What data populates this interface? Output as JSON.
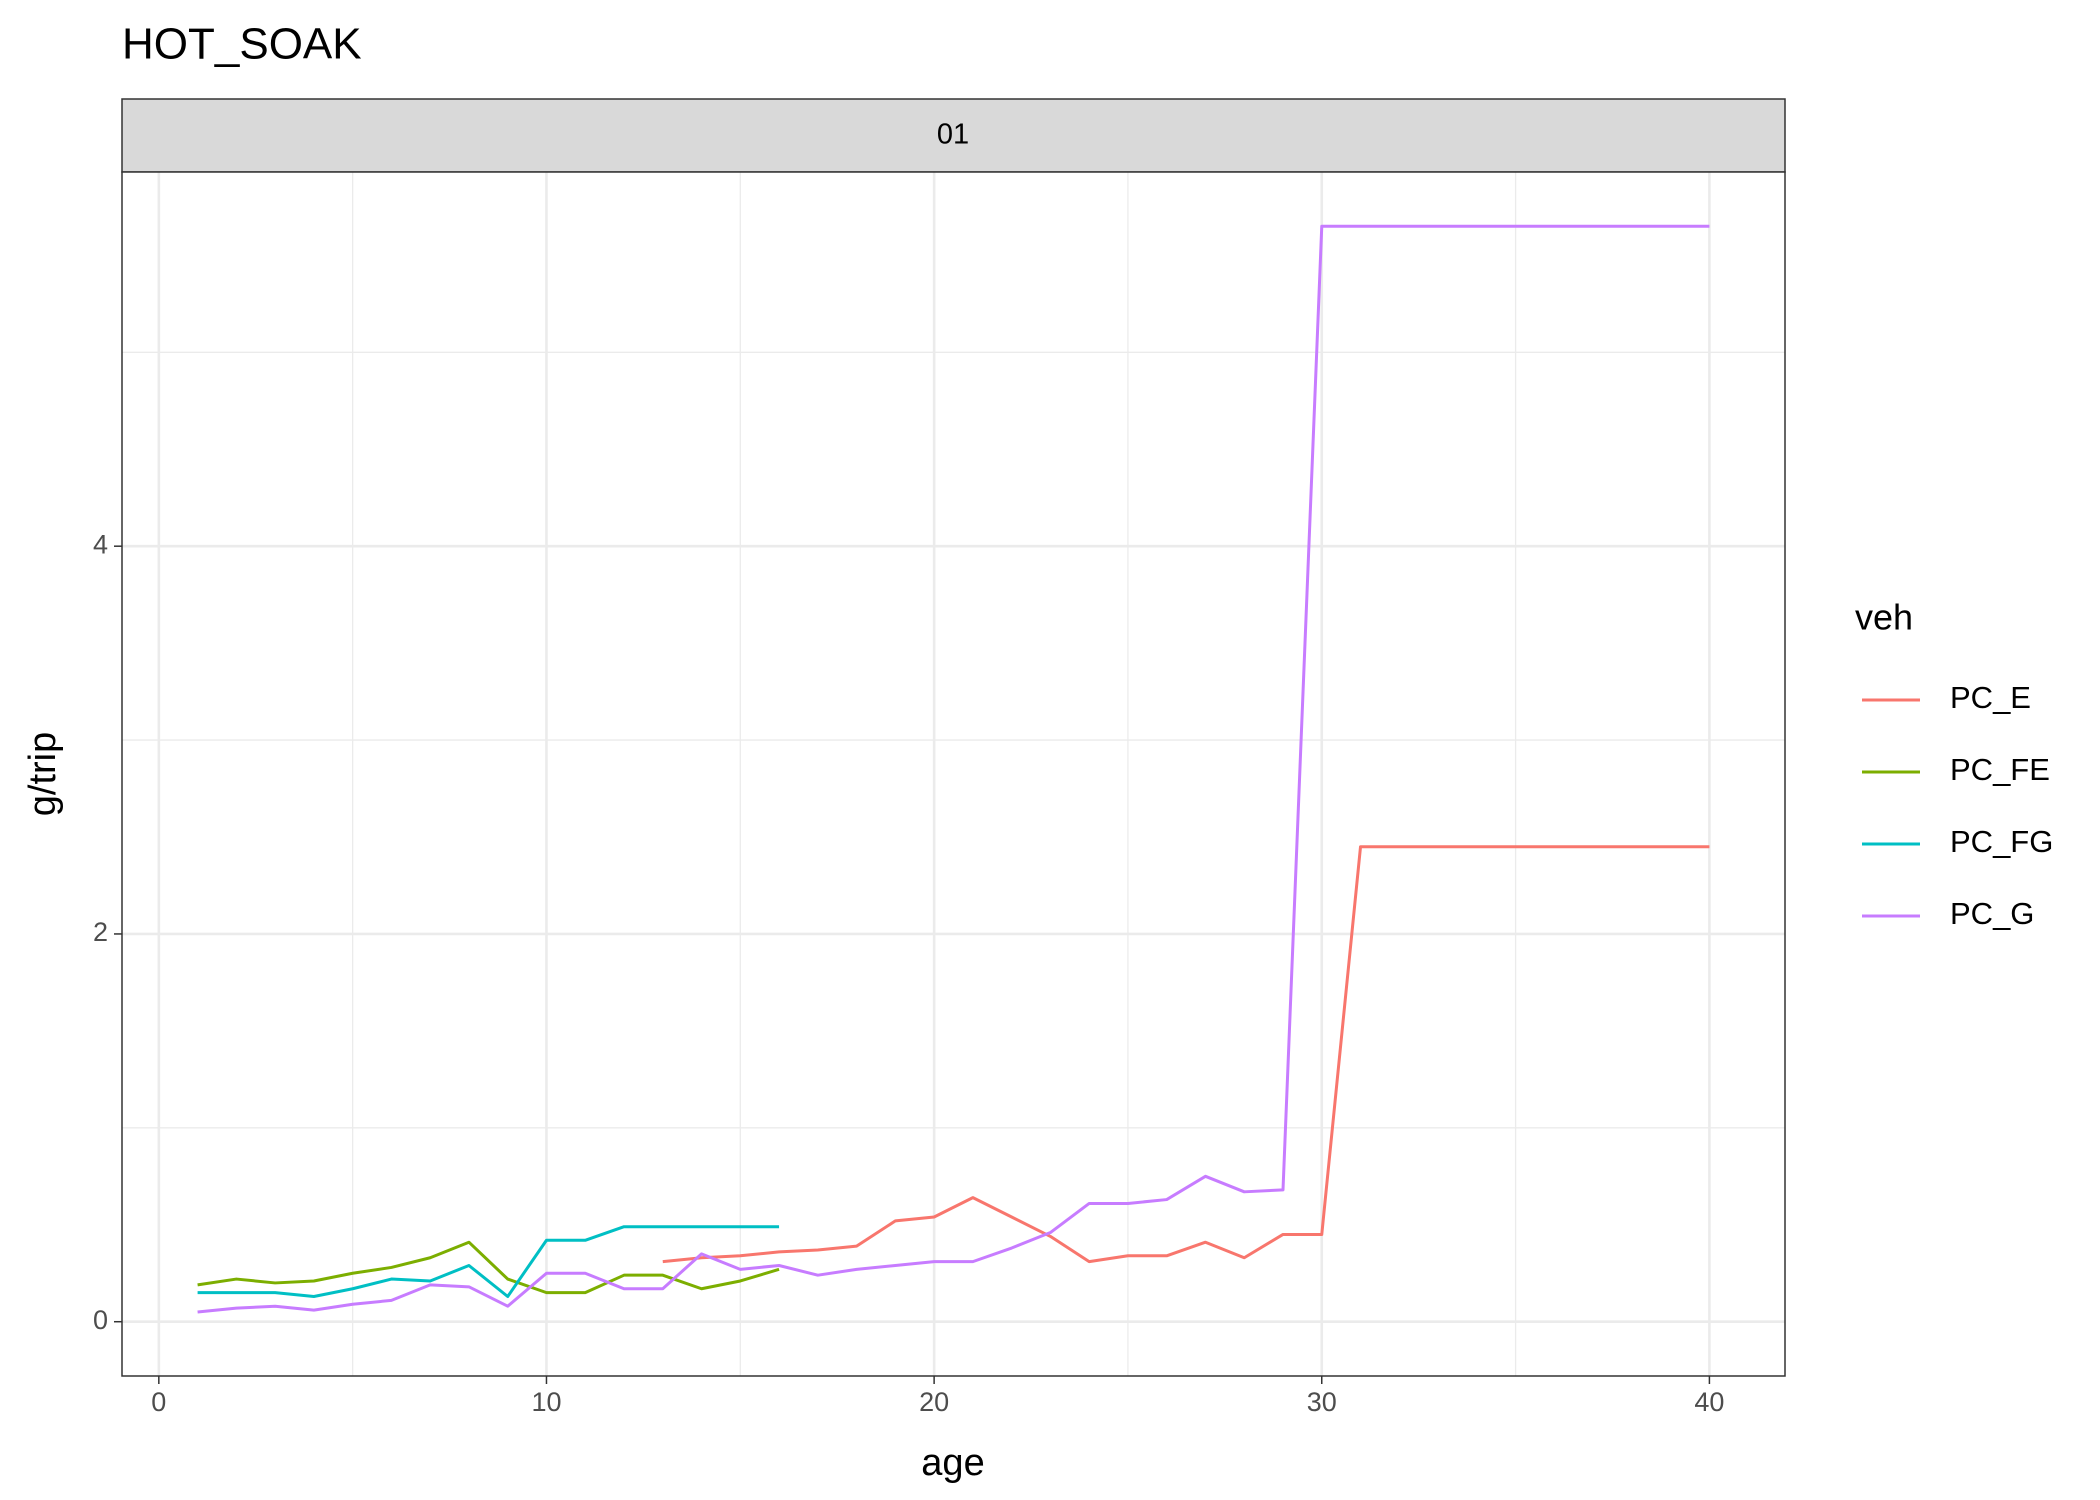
{
  "chart_data": {
    "type": "line",
    "title": "HOT_SOAK",
    "facet_label": "01",
    "x_label": "age",
    "y_label": "g/trip",
    "legend_title": "veh",
    "legend_position": "right",
    "grid": true,
    "x": [
      1,
      2,
      3,
      4,
      5,
      6,
      7,
      8,
      9,
      10,
      11,
      12,
      13,
      14,
      15,
      16,
      17,
      18,
      19,
      20,
      21,
      22,
      23,
      24,
      25,
      26,
      27,
      28,
      29,
      30,
      31,
      32,
      33,
      34,
      35,
      36,
      37,
      38,
      39,
      40
    ],
    "series": [
      {
        "name": "PC_E",
        "color": "#F8766D",
        "values": [
          null,
          null,
          null,
          null,
          null,
          null,
          null,
          null,
          null,
          null,
          null,
          null,
          0.31,
          0.33,
          0.34,
          0.36,
          0.37,
          0.39,
          0.52,
          0.54,
          0.64,
          0.54,
          0.44,
          0.31,
          0.34,
          0.34,
          0.41,
          0.33,
          0.45,
          0.45,
          2.45,
          2.45,
          2.45,
          2.45,
          2.45,
          2.45,
          2.45,
          2.45,
          2.45,
          2.45
        ]
      },
      {
        "name": "PC_FE",
        "color": "#7CAE00",
        "values": [
          0.19,
          0.22,
          0.2,
          0.21,
          0.25,
          0.28,
          0.33,
          0.41,
          0.22,
          0.15,
          0.15,
          0.24,
          0.24,
          0.17,
          0.21,
          0.27,
          null,
          null,
          null,
          null,
          null,
          null,
          null,
          null,
          null,
          null,
          null,
          null,
          null,
          null,
          null,
          null,
          null,
          null,
          null,
          null,
          null,
          null,
          null,
          null
        ]
      },
      {
        "name": "PC_FG",
        "color": "#00BFC4",
        "values": [
          0.15,
          0.15,
          0.15,
          0.13,
          0.17,
          0.22,
          0.21,
          0.29,
          0.13,
          0.42,
          0.42,
          0.49,
          0.49,
          0.49,
          0.49,
          0.49,
          null,
          null,
          null,
          null,
          null,
          null,
          null,
          null,
          null,
          null,
          null,
          null,
          null,
          null,
          null,
          null,
          null,
          null,
          null,
          null,
          null,
          null,
          null,
          null
        ]
      },
      {
        "name": "PC_G",
        "color": "#C77CFF",
        "values": [
          0.05,
          0.07,
          0.08,
          0.06,
          0.09,
          0.11,
          0.19,
          0.18,
          0.08,
          0.25,
          0.25,
          0.17,
          0.17,
          0.35,
          0.27,
          0.29,
          0.24,
          0.27,
          0.29,
          0.31,
          0.31,
          0.38,
          0.46,
          0.61,
          0.61,
          0.63,
          0.75,
          0.67,
          0.68,
          5.65,
          5.65,
          5.65,
          5.65,
          5.65,
          5.65,
          5.65,
          5.65,
          5.65,
          5.65,
          5.65
        ]
      }
    ],
    "xlim": [
      -0.95,
      41.95
    ],
    "xticks": [
      0,
      10,
      20,
      30,
      40
    ],
    "x_minor_ticks": [
      5,
      15,
      25,
      35
    ],
    "ylim": [
      -0.28,
      5.93
    ],
    "yticks": [
      0,
      2,
      4
    ],
    "y_minor_ticks": [
      1,
      3,
      5
    ]
  }
}
